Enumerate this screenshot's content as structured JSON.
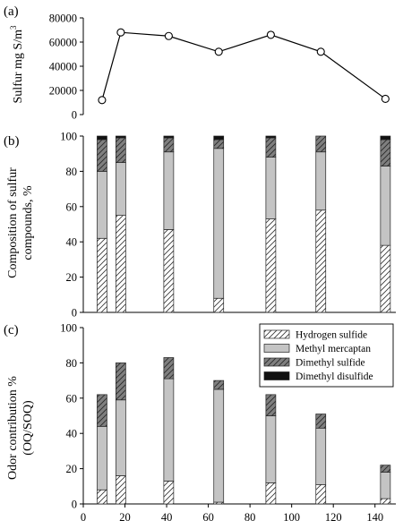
{
  "chart_data": [
    {
      "panel": "(a)",
      "type": "line",
      "ylabel_main": "Sulfur mg S/m",
      "ylabel_sup": "3",
      "x": [
        9,
        18,
        41,
        65,
        90,
        114,
        145
      ],
      "y": [
        12000,
        68000,
        65000,
        52000,
        66000,
        52000,
        13000
      ],
      "xlim": [
        0,
        150
      ],
      "ylim": [
        0,
        80000
      ],
      "yticks": [
        0,
        20000,
        40000,
        60000,
        80000
      ],
      "grid": false
    },
    {
      "panel": "(b)",
      "type": "bar",
      "stacked": true,
      "ylabel_lines": [
        "Composition of sulfur",
        "compounds, %"
      ],
      "x": [
        9,
        18,
        41,
        65,
        90,
        114,
        145
      ],
      "series": [
        {
          "name": "Hydrogen sulfide",
          "values": [
            42,
            55,
            47,
            8,
            53,
            58,
            38
          ]
        },
        {
          "name": "Methyl mercaptan",
          "values": [
            38,
            30,
            44,
            85,
            35,
            33,
            45
          ]
        },
        {
          "name": "Dimethyl sulfide",
          "values": [
            18,
            14,
            8,
            5,
            11,
            9,
            15
          ]
        },
        {
          "name": "Dimethyl disulfide",
          "values": [
            2,
            1,
            1,
            2,
            1,
            0,
            2
          ]
        }
      ],
      "ylim": [
        0,
        100
      ],
      "yticks": [
        0,
        20,
        40,
        60,
        80,
        100
      ],
      "xlim": [
        0,
        150
      ],
      "grid": false
    },
    {
      "panel": "(c)",
      "type": "bar",
      "stacked": true,
      "ylabel_lines": [
        "Odor contribution %",
        "(OQ/SOQ)"
      ],
      "x": [
        9,
        18,
        41,
        65,
        90,
        114,
        145
      ],
      "series": [
        {
          "name": "Hydrogen sulfide",
          "values": [
            8,
            16,
            13,
            1,
            12,
            11,
            3
          ]
        },
        {
          "name": "Methyl mercaptan",
          "values": [
            36,
            43,
            58,
            64,
            38,
            32,
            15
          ]
        },
        {
          "name": "Dimethyl sulfide",
          "values": [
            18,
            21,
            12,
            5,
            12,
            8,
            4
          ]
        },
        {
          "name": "Dimethyl disulfide",
          "values": [
            0,
            0,
            0,
            0,
            0,
            0,
            0
          ]
        }
      ],
      "ylim": [
        0,
        100
      ],
      "yticks": [
        0,
        20,
        40,
        60,
        80,
        100
      ],
      "xlim": [
        0,
        150
      ],
      "xticks": [
        0,
        20,
        40,
        60,
        80,
        100,
        120,
        140
      ],
      "legend": {
        "placement": "top-right",
        "entries": [
          "Hydrogen sulfide",
          "Methyl mercaptan",
          "Dimethyl sulfide",
          "Dimethyl disulfide"
        ]
      },
      "grid": false
    }
  ],
  "colors": {
    "hydrogen_sulfide": "#ffffff",
    "methyl_mercaptan": "#c4c4c4",
    "dimethyl_sulfide": "#7f7f7f",
    "dimethyl_disulfide": "#111111",
    "axis": "#000000"
  }
}
